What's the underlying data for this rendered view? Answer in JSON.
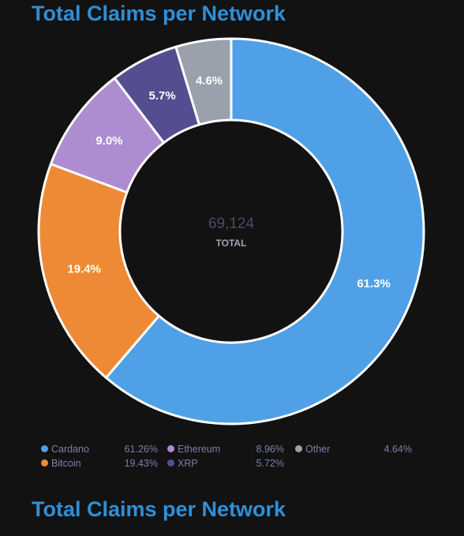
{
  "header": {
    "title": "Total Claims per Network",
    "title_repeat": "Total Claims per Network"
  },
  "chart_data": {
    "type": "pie",
    "variant": "donut",
    "title": "Total Claims per Network",
    "center": {
      "value": "69,124",
      "label": "TOTAL"
    },
    "slices": [
      {
        "name": "Cardano",
        "value": 61.26,
        "label": "61.3%",
        "legend_pct": "61.26%",
        "color": "#4fa0e6"
      },
      {
        "name": "Bitcoin",
        "value": 19.43,
        "label": "19.4%",
        "legend_pct": "19.43%",
        "color": "#ee8a36"
      },
      {
        "name": "Ethereum",
        "value": 8.96,
        "label": "9.0%",
        "legend_pct": "8.96%",
        "color": "#ad8ccf"
      },
      {
        "name": "XRP",
        "value": 5.72,
        "label": "5.7%",
        "legend_pct": "5.72%",
        "color": "#544e90"
      },
      {
        "name": "Other",
        "value": 4.64,
        "label": "4.6%",
        "legend_pct": "4.64%",
        "color": "#9ba0ad"
      }
    ],
    "legend": {
      "placement": "bottom",
      "order": [
        "Cardano",
        "Ethereum",
        "Other",
        "Bitcoin",
        "XRP"
      ]
    }
  }
}
